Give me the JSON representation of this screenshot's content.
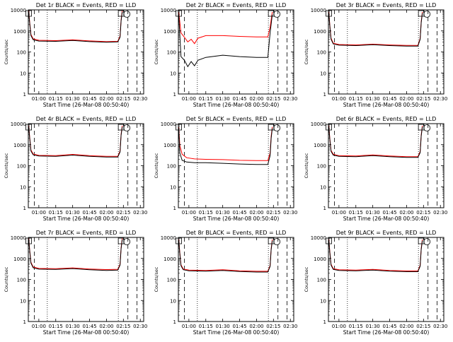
{
  "colors": {
    "events": "#000000",
    "lld": "#ff0000",
    "axis": "#000000",
    "background": "#ffffff"
  },
  "shared": {
    "xlabel": "Start Time (26-Mar-08 00:50:40)",
    "ylabel": "Counts/sec",
    "x_tick_labels": [
      "01:00",
      "01:15",
      "01:30",
      "01:45",
      "02:00",
      "02:15",
      "02:30"
    ],
    "y_tick_labels": [
      "1",
      "10",
      "100",
      "1000",
      "10000"
    ]
  },
  "chart_data": [
    {
      "type": "line",
      "title": "Det 1r BLACK = Events, RED = LLD",
      "xlabel": "Start Time (26-Mar-08 00:50:40)",
      "ylabel": "Counts/sec",
      "y_scale": "log",
      "ylim": [
        1,
        10000
      ],
      "xlim": [
        "00:50:40",
        "02:33:00"
      ],
      "x": [
        "00:51:00",
        "00:52:00",
        "00:53:00",
        "00:55:00",
        "01:00:00",
        "01:15:00",
        "01:30:00",
        "01:45:00",
        "02:00:00",
        "02:10:00",
        "02:12:00",
        "02:13:00",
        "02:14:00"
      ],
      "series": [
        {
          "name": "Events",
          "values": [
            8000,
            2000,
            600,
            380,
            330,
            320,
            350,
            310,
            290,
            300,
            500,
            3000,
            8000
          ]
        },
        {
          "name": "LLD",
          "values": [
            9000,
            2300,
            680,
            420,
            360,
            345,
            375,
            335,
            310,
            320,
            560,
            3400,
            9000
          ]
        }
      ]
    },
    {
      "type": "line",
      "title": "Det 2r BLACK = Events, RED = LLD",
      "xlabel": "Start Time (26-Mar-08 00:50:40)",
      "ylabel": "Counts/sec",
      "y_scale": "log",
      "ylim": [
        1,
        10000
      ],
      "xlim": [
        "00:50:40",
        "02:33:00"
      ],
      "x": [
        "00:51:00",
        "00:53:00",
        "00:56:00",
        "00:59:00",
        "01:02:00",
        "01:05:00",
        "01:08:00",
        "01:15:00",
        "01:30:00",
        "01:45:00",
        "02:00:00",
        "02:10:00",
        "02:12:00",
        "02:14:00"
      ],
      "series": [
        {
          "name": "Events",
          "values": [
            6000,
            60,
            40,
            20,
            35,
            22,
            40,
            55,
            70,
            60,
            55,
            55,
            800,
            6000
          ]
        },
        {
          "name": "LLD",
          "values": [
            8000,
            800,
            500,
            300,
            400,
            250,
            450,
            600,
            600,
            550,
            520,
            520,
            1500,
            8000
          ]
        }
      ]
    },
    {
      "type": "line",
      "title": "Det 3r BLACK = Events, RED = LLD",
      "xlabel": "Start Time (26-Mar-08 00:50:40)",
      "ylabel": "Counts/sec",
      "y_scale": "log",
      "ylim": [
        1,
        10000
      ],
      "xlim": [
        "00:50:40",
        "02:33:00"
      ],
      "x": [
        "00:51:00",
        "00:52:00",
        "00:53:00",
        "00:55:00",
        "01:00:00",
        "01:15:00",
        "01:30:00",
        "01:45:00",
        "02:00:00",
        "02:10:00",
        "02:12:00",
        "02:13:00",
        "02:14:00"
      ],
      "series": [
        {
          "name": "Events",
          "values": [
            7000,
            1500,
            400,
            240,
            210,
            200,
            220,
            200,
            190,
            190,
            400,
            2500,
            7000
          ]
        },
        {
          "name": "LLD",
          "values": [
            8000,
            1700,
            450,
            260,
            225,
            215,
            235,
            215,
            205,
            205,
            440,
            2800,
            8000
          ]
        }
      ]
    },
    {
      "type": "line",
      "title": "Det 4r BLACK = Events, RED = LLD",
      "xlabel": "Start Time (26-Mar-08 00:50:40)",
      "ylabel": "Counts/sec",
      "y_scale": "log",
      "ylim": [
        1,
        10000
      ],
      "xlim": [
        "00:50:40",
        "02:33:00"
      ],
      "x": [
        "00:51:00",
        "00:52:00",
        "00:53:00",
        "00:55:00",
        "01:00:00",
        "01:15:00",
        "01:30:00",
        "01:45:00",
        "02:00:00",
        "02:10:00",
        "02:12:00",
        "02:13:00",
        "02:14:00"
      ],
      "series": [
        {
          "name": "Events",
          "values": [
            7000,
            1800,
            500,
            330,
            290,
            280,
            320,
            280,
            260,
            260,
            450,
            2800,
            7000
          ]
        },
        {
          "name": "LLD",
          "values": [
            8000,
            2000,
            560,
            360,
            310,
            300,
            345,
            300,
            280,
            280,
            500,
            3100,
            8000
          ]
        }
      ]
    },
    {
      "type": "line",
      "title": "Det 5r BLACK = Events, RED = LLD",
      "xlabel": "Start Time (26-Mar-08 00:50:40)",
      "ylabel": "Counts/sec",
      "y_scale": "log",
      "ylim": [
        1,
        10000
      ],
      "xlim": [
        "00:50:40",
        "02:33:00"
      ],
      "x": [
        "00:51:00",
        "00:52:00",
        "00:54:00",
        "00:58:00",
        "01:05:00",
        "01:15:00",
        "01:30:00",
        "01:45:00",
        "02:00:00",
        "02:10:00",
        "02:12:00",
        "02:13:00",
        "02:14:00"
      ],
      "series": [
        {
          "name": "Events",
          "values": [
            6000,
            400,
            180,
            150,
            140,
            140,
            130,
            120,
            115,
            115,
            300,
            2000,
            6000
          ]
        },
        {
          "name": "LLD",
          "values": [
            7000,
            900,
            350,
            240,
            210,
            200,
            195,
            180,
            175,
            175,
            400,
            2500,
            7000
          ]
        }
      ]
    },
    {
      "type": "line",
      "title": "Det 6r BLACK = Events, RED = LLD",
      "xlabel": "Start Time (26-Mar-08 00:50:40)",
      "ylabel": "Counts/sec",
      "y_scale": "log",
      "ylim": [
        1,
        10000
      ],
      "xlim": [
        "00:50:40",
        "02:33:00"
      ],
      "x": [
        "00:51:00",
        "00:52:00",
        "00:53:00",
        "00:55:00",
        "01:00:00",
        "01:15:00",
        "01:30:00",
        "01:45:00",
        "02:00:00",
        "02:10:00",
        "02:12:00",
        "02:13:00",
        "02:14:00"
      ],
      "series": [
        {
          "name": "Events",
          "values": [
            7000,
            1600,
            480,
            320,
            280,
            270,
            300,
            270,
            250,
            250,
            420,
            2600,
            7000
          ]
        },
        {
          "name": "LLD",
          "values": [
            8000,
            1800,
            530,
            350,
            300,
            290,
            325,
            290,
            270,
            270,
            470,
            2900,
            8000
          ]
        }
      ]
    },
    {
      "type": "line",
      "title": "Det 7r BLACK = Events, RED = LLD",
      "xlabel": "Start Time (26-Mar-08 00:50:40)",
      "ylabel": "Counts/sec",
      "y_scale": "log",
      "ylim": [
        1,
        10000
      ],
      "xlim": [
        "00:50:40",
        "02:33:00"
      ],
      "x": [
        "00:51:00",
        "00:52:00",
        "00:53:00",
        "00:55:00",
        "01:00:00",
        "01:15:00",
        "01:30:00",
        "01:45:00",
        "02:00:00",
        "02:10:00",
        "02:12:00",
        "02:13:00",
        "02:14:00"
      ],
      "series": [
        {
          "name": "Events",
          "values": [
            8000,
            2000,
            600,
            360,
            310,
            300,
            330,
            290,
            270,
            280,
            480,
            2900,
            8000
          ]
        },
        {
          "name": "LLD",
          "values": [
            9000,
            2200,
            660,
            390,
            335,
            325,
            355,
            315,
            295,
            305,
            530,
            3200,
            9000
          ]
        }
      ]
    },
    {
      "type": "line",
      "title": "Det 8r BLACK = Events, RED = LLD",
      "xlabel": "Start Time (26-Mar-08 00:50:40)",
      "ylabel": "Counts/sec",
      "y_scale": "log",
      "ylim": [
        1,
        10000
      ],
      "xlim": [
        "00:50:40",
        "02:33:00"
      ],
      "x": [
        "00:51:00",
        "00:52:00",
        "00:53:00",
        "00:55:00",
        "01:00:00",
        "01:15:00",
        "01:30:00",
        "01:45:00",
        "02:00:00",
        "02:10:00",
        "02:12:00",
        "02:13:00",
        "02:14:00"
      ],
      "series": [
        {
          "name": "Events",
          "values": [
            7000,
            1600,
            450,
            290,
            260,
            250,
            270,
            240,
            225,
            225,
            420,
            2600,
            7000
          ]
        },
        {
          "name": "LLD",
          "values": [
            8000,
            1800,
            500,
            315,
            280,
            270,
            290,
            260,
            245,
            245,
            460,
            2900,
            8000
          ]
        }
      ]
    },
    {
      "type": "line",
      "title": "Det 9r BLACK = Events, RED = LLD",
      "xlabel": "Start Time (26-Mar-08 00:50:40)",
      "ylabel": "Counts/sec",
      "y_scale": "log",
      "ylim": [
        1,
        10000
      ],
      "xlim": [
        "00:50:40",
        "02:33:00"
      ],
      "x": [
        "00:51:00",
        "00:52:00",
        "00:53:00",
        "00:55:00",
        "01:00:00",
        "01:15:00",
        "01:30:00",
        "01:45:00",
        "02:00:00",
        "02:10:00",
        "02:12:00",
        "02:13:00",
        "02:14:00"
      ],
      "series": [
        {
          "name": "Events",
          "values": [
            7000,
            1700,
            480,
            300,
            270,
            260,
            280,
            250,
            235,
            235,
            430,
            2700,
            7000
          ]
        },
        {
          "name": "LLD",
          "values": [
            8000,
            1900,
            530,
            325,
            290,
            280,
            300,
            270,
            255,
            255,
            470,
            3000,
            8000
          ]
        }
      ]
    }
  ]
}
